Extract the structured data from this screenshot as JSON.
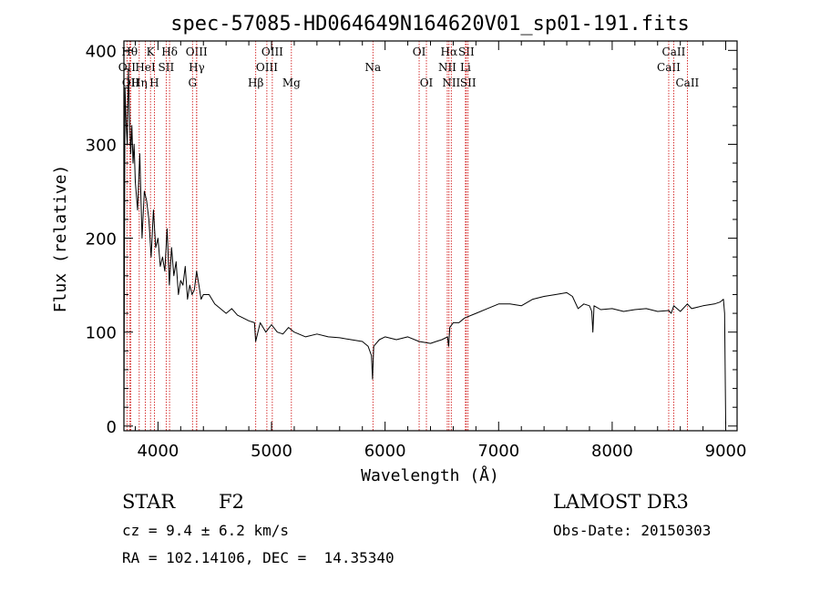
{
  "chart_data": {
    "type": "line",
    "title": "spec-57085-HD064649N164620V01_sp01-191.fits",
    "xlabel": "Wavelength (Å)",
    "ylabel": "Flux (relative)",
    "xlim": [
      3700,
      9100
    ],
    "ylim": [
      -5,
      410
    ],
    "xticks": [
      4000,
      5000,
      6000,
      7000,
      8000,
      9000
    ],
    "yticks": [
      0,
      100,
      200,
      300,
      400
    ],
    "series": [
      {
        "name": "spectrum",
        "x": [
          3700,
          3710,
          3720,
          3730,
          3740,
          3750,
          3760,
          3770,
          3780,
          3790,
          3800,
          3820,
          3840,
          3860,
          3880,
          3900,
          3920,
          3940,
          3960,
          3980,
          4000,
          4020,
          4040,
          4060,
          4080,
          4100,
          4120,
          4140,
          4160,
          4180,
          4200,
          4220,
          4240,
          4260,
          4280,
          4300,
          4320,
          4340,
          4360,
          4380,
          4400,
          4450,
          4500,
          4550,
          4600,
          4650,
          4700,
          4750,
          4800,
          4850,
          4860,
          4900,
          4950,
          5000,
          5050,
          5100,
          5150,
          5200,
          5300,
          5400,
          5500,
          5600,
          5700,
          5800,
          5850,
          5880,
          5890,
          5900,
          5950,
          6000,
          6100,
          6200,
          6300,
          6400,
          6450,
          6500,
          6550,
          6560,
          6570,
          6600,
          6650,
          6700,
          6800,
          6900,
          7000,
          7100,
          7200,
          7300,
          7400,
          7500,
          7600,
          7650,
          7700,
          7750,
          7800,
          7820,
          7830,
          7840,
          7900,
          8000,
          8100,
          8200,
          8300,
          8400,
          8498,
          8520,
          8542,
          8600,
          8662,
          8700,
          8800,
          8900,
          8950,
          8980,
          8990,
          9000
        ],
        "y": [
          0,
          360,
          320,
          300,
          380,
          330,
          290,
          320,
          280,
          300,
          260,
          230,
          290,
          200,
          250,
          240,
          220,
          180,
          230,
          190,
          200,
          170,
          180,
          165,
          210,
          150,
          190,
          160,
          175,
          140,
          155,
          150,
          170,
          135,
          150,
          140,
          145,
          165,
          150,
          135,
          140,
          140,
          130,
          125,
          120,
          125,
          118,
          115,
          112,
          110,
          90,
          110,
          100,
          108,
          100,
          98,
          105,
          100,
          95,
          98,
          95,
          94,
          92,
          90,
          85,
          75,
          50,
          85,
          92,
          95,
          92,
          95,
          90,
          88,
          90,
          92,
          95,
          85,
          105,
          110,
          110,
          115,
          120,
          125,
          130,
          130,
          128,
          135,
          138,
          140,
          142,
          138,
          125,
          130,
          128,
          122,
          100,
          128,
          124,
          125,
          122,
          124,
          125,
          122,
          123,
          120,
          128,
          122,
          130,
          125,
          128,
          130,
          132,
          135,
          120,
          2
        ]
      }
    ],
    "spectral_lines": [
      {
        "label": "OII",
        "wavelength": 3727,
        "row": 2
      },
      {
        "label": "Hθ",
        "wavelength": 3750,
        "row": 1
      },
      {
        "label": "OII",
        "wavelength": 3760,
        "row": 3
      },
      {
        "label": "Hη",
        "wavelength": 3835,
        "row": 3
      },
      {
        "label": "HeI",
        "wavelength": 3889,
        "row": 2
      },
      {
        "label": "K",
        "wavelength": 3934,
        "row": 1
      },
      {
        "label": "H",
        "wavelength": 3968,
        "row": 3
      },
      {
        "label": "SII",
        "wavelength": 4072,
        "row": 2
      },
      {
        "label": "Hδ",
        "wavelength": 4102,
        "row": 1
      },
      {
        "label": "G",
        "wavelength": 4304,
        "row": 3
      },
      {
        "label": "OIII",
        "wavelength": 4340,
        "row": 1
      },
      {
        "label": "Hγ",
        "wavelength": 4341,
        "row": 2
      },
      {
        "label": "Hβ",
        "wavelength": 4861,
        "row": 3
      },
      {
        "label": "OIII",
        "wavelength": 4959,
        "row": 2
      },
      {
        "label": "OIII",
        "wavelength": 5007,
        "row": 1
      },
      {
        "label": "Mg",
        "wavelength": 5175,
        "row": 3
      },
      {
        "label": "Na",
        "wavelength": 5893,
        "row": 2
      },
      {
        "label": "OI",
        "wavelength": 6300,
        "row": 1
      },
      {
        "label": "OI",
        "wavelength": 6364,
        "row": 3
      },
      {
        "label": "NII",
        "wavelength": 6548,
        "row": 2
      },
      {
        "label": "Hα",
        "wavelength": 6563,
        "row": 1
      },
      {
        "label": "NII",
        "wavelength": 6583,
        "row": 3
      },
      {
        "label": "Li",
        "wavelength": 6708,
        "row": 2
      },
      {
        "label": "SII",
        "wavelength": 6716,
        "row": 1
      },
      {
        "label": "SII",
        "wavelength": 6731,
        "row": 3
      },
      {
        "label": "CaII",
        "wavelength": 8498,
        "row": 2
      },
      {
        "label": "CaII",
        "wavelength": 8542,
        "row": 1
      },
      {
        "label": "CaII",
        "wavelength": 8662,
        "row": 3
      }
    ]
  },
  "info": {
    "object_class": "STAR",
    "subclass": "F2",
    "survey": "LAMOST DR3",
    "redshift": "cz = 9.4 ± 6.2 km/s",
    "obs_date": "Obs-Date: 20150303",
    "coords": "RA = 102.14106, DEC =  14.35340"
  },
  "colors": {
    "line_marker": "#cc0000",
    "spectrum": "#000000"
  }
}
